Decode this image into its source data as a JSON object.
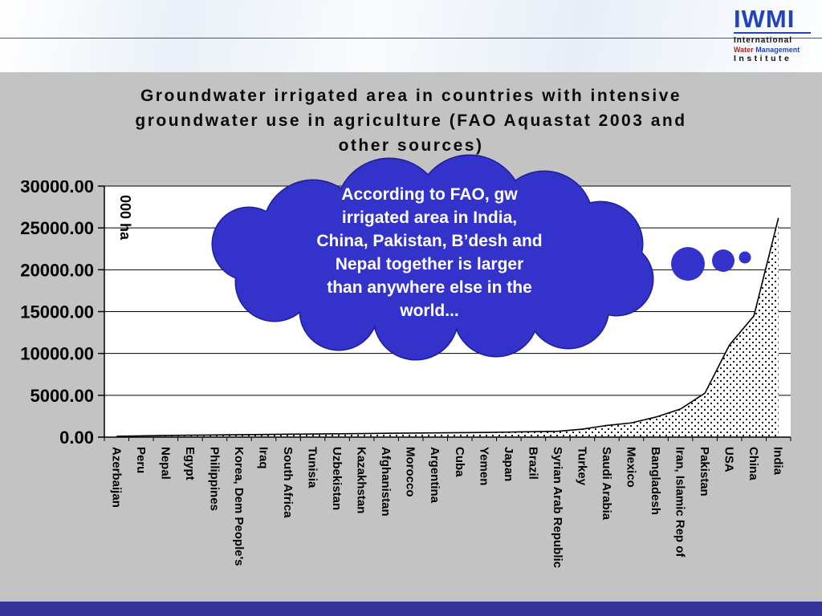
{
  "header": {
    "logo": {
      "acronym": "IWMI",
      "line1": "International",
      "line2a": "Water",
      "line2b": "Management",
      "line3": "Institute"
    }
  },
  "slide": {
    "title_lines": [
      "Groundwater irrigated area in countries with intensive",
      "groundwater use in agriculture (FAO Aquastat 2003 and",
      "other sources)"
    ]
  },
  "callout": {
    "color": "#3333cc",
    "lines": [
      "According to FAO, gw",
      "irrigated area in India,",
      "China, Pakistan, B’desh and",
      "Nepal together is  larger",
      "than anywhere else in the",
      "world..."
    ]
  },
  "chart_data": {
    "type": "area",
    "title": "Groundwater irrigated area in countries with intensive groundwater use in agriculture (FAO Aquastat 2003 and other sources)",
    "xlabel": "",
    "ylabel": "000 ha",
    "ylim": [
      0,
      30000
    ],
    "ytick_step": 5000,
    "ytick_labels": [
      "0.00",
      "5000.00",
      "10000.00",
      "15000.00",
      "20000.00",
      "25000.00",
      "30000.00"
    ],
    "grid": true,
    "legend": "none",
    "fill_style": "dotted-area",
    "line_color": "#000000",
    "categories": [
      "Azerbaijan",
      "Peru",
      "Nepal",
      "Egypt",
      "Philippines",
      "Korea, Dem People's",
      "Iraq",
      "South Africa",
      "Tunisia",
      "Uzbekistan",
      "Kazakhstan",
      "Afghanistan",
      "Morocco",
      "Argentina",
      "Cuba",
      "Yemen",
      "Japan",
      "Brazil",
      "Syrian Arab Republic",
      "Turkey",
      "Saudi Arabia",
      "Mexico",
      "Bangladesh",
      "Iran, Islamic Rep of",
      "Pakistan",
      "USA",
      "China",
      "India"
    ],
    "values": [
      100,
      150,
      200,
      230,
      260,
      290,
      320,
      350,
      380,
      400,
      430,
      460,
      490,
      510,
      530,
      560,
      600,
      650,
      700,
      950,
      1400,
      1700,
      2400,
      3350,
      5250,
      11000,
      14500,
      26200
    ]
  }
}
